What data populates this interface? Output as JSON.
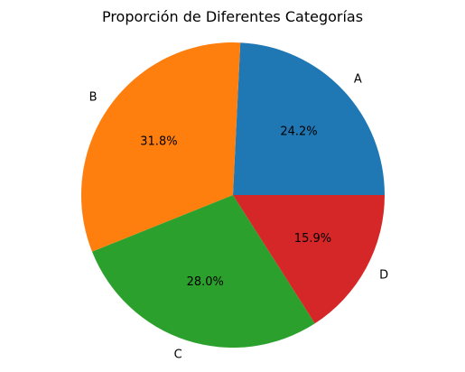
{
  "chart_data": {
    "type": "pie",
    "title": "Proporción de Diferentes Categorías",
    "categories": [
      "A",
      "B",
      "C",
      "D"
    ],
    "values": [
      24.2,
      31.8,
      28.0,
      15.9
    ],
    "percent_labels": [
      "24.2%",
      "31.8%",
      "28.0%",
      "15.9%"
    ],
    "colors": [
      "#1f77b4",
      "#ff7f0e",
      "#2ca02c",
      "#d62728"
    ],
    "start_angle_deg": 0,
    "direction": "counterclockwise"
  }
}
